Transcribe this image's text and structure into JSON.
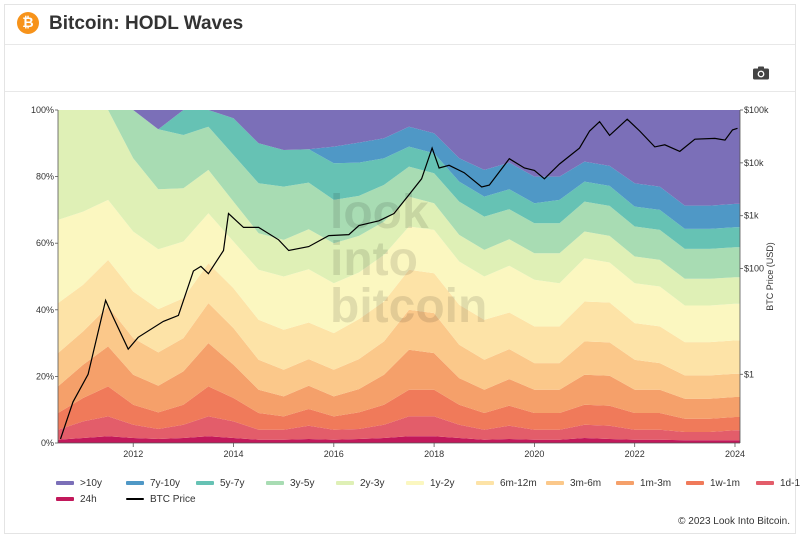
{
  "header": {
    "title": "Bitcoin: HODL Waves",
    "logo_icon": "bitcoin-icon",
    "logo_glyph": "₿"
  },
  "toolbar": {
    "camera_icon": "camera-icon"
  },
  "footer": {
    "copyright": "© 2023 Look Into Bitcoin."
  },
  "watermark": {
    "line1": "look",
    "line2": "into",
    "line3": "bitcoin"
  },
  "chart_data": {
    "type": "area",
    "stacked": true,
    "y_left": {
      "min": 0,
      "max": 100,
      "unit": "%",
      "ticks": [
        0,
        20,
        40,
        60,
        80,
        100
      ],
      "tick_labels": [
        "0%",
        "20%",
        "40%",
        "60%",
        "80%",
        "100%"
      ]
    },
    "y_right": {
      "label": "BTC Price (USD)",
      "scale": "log",
      "ticks": [
        1,
        100,
        1000,
        10000,
        100000
      ],
      "tick_labels": [
        "$1",
        "$100",
        "$1k",
        "$10k",
        "$100k"
      ]
    },
    "x_axis": {
      "min": 2010.5,
      "max": 2024.1,
      "ticks": [
        2012,
        2014,
        2016,
        2018,
        2020,
        2022,
        2024
      ],
      "tick_labels": [
        "2012",
        "2014",
        "2016",
        "2018",
        "2020",
        "2022",
        "2024"
      ]
    },
    "x": [
      2010.5,
      2011.0,
      2011.5,
      2012.0,
      2012.5,
      2013.0,
      2013.5,
      2014.0,
      2014.5,
      2015.0,
      2015.5,
      2016.0,
      2016.5,
      2017.0,
      2017.5,
      2018.0,
      2018.5,
      2019.0,
      2019.5,
      2020.0,
      2020.5,
      2021.0,
      2021.5,
      2022.0,
      2022.5,
      2023.0,
      2023.5,
      2024.0,
      2024.1
    ],
    "series": [
      {
        "name": "24h",
        "color": "#c2185b",
        "values": [
          1.0,
          1.5,
          2.0,
          1.5,
          1.2,
          1.5,
          2.0,
          1.5,
          1.0,
          1.0,
          1.2,
          1.0,
          1.2,
          1.5,
          2.0,
          2.0,
          1.5,
          1.0,
          1.2,
          1.0,
          1.0,
          1.5,
          1.2,
          1.0,
          1.0,
          0.8,
          0.8,
          0.8,
          0.8
        ]
      },
      {
        "name": "1d-1w",
        "color": "#e35d6a",
        "values": [
          3,
          5,
          6,
          4,
          3,
          4,
          6,
          5,
          3,
          3,
          4,
          3,
          3,
          4,
          6,
          6,
          4,
          3,
          4,
          3,
          3,
          4,
          4,
          3,
          3,
          2.5,
          2.5,
          3,
          3
        ]
      },
      {
        "name": "1w-1m",
        "color": "#f07a5a",
        "values": [
          5,
          7,
          9,
          6,
          5,
          6,
          9,
          7,
          5,
          4,
          5,
          4,
          5,
          6,
          8,
          8,
          6,
          5,
          6,
          5,
          5,
          6,
          6,
          5,
          5,
          4,
          4,
          4,
          4
        ]
      },
      {
        "name": "1m-3m",
        "color": "#f5a06a",
        "values": [
          8,
          10,
          12,
          9,
          8,
          10,
          13,
          10,
          7,
          6,
          7,
          6,
          7,
          9,
          12,
          11,
          8,
          7,
          8,
          7,
          7,
          9,
          9,
          7,
          7,
          6,
          6,
          6,
          6
        ]
      },
      {
        "name": "3m-6m",
        "color": "#fbc88a",
        "values": [
          10,
          10,
          12,
          11,
          10,
          10,
          12,
          11,
          9,
          8,
          8,
          8,
          9,
          10,
          12,
          12,
          10,
          9,
          9,
          8,
          8,
          10,
          10,
          9,
          8,
          7,
          7,
          7,
          7
        ]
      },
      {
        "name": "6m-12m",
        "color": "#fde3a7",
        "values": [
          15,
          14,
          14,
          14,
          13,
          12,
          12,
          12,
          12,
          12,
          11,
          11,
          12,
          12,
          12,
          12,
          12,
          12,
          11,
          11,
          11,
          12,
          12,
          11,
          11,
          10,
          10,
          10,
          10
        ]
      },
      {
        "name": "1y-2y",
        "color": "#fbf7c0",
        "values": [
          25,
          22,
          18,
          18,
          18,
          17,
          15,
          14,
          15,
          16,
          16,
          15,
          14,
          14,
          13,
          13,
          13,
          13,
          14,
          14,
          13,
          13,
          12,
          12,
          12,
          11,
          11,
          11,
          11
        ]
      },
      {
        "name": "2y-3y",
        "color": "#dff0b6",
        "values": [
          33,
          31,
          27,
          22,
          18,
          16,
          13,
          12,
          11,
          11,
          12,
          12,
          11,
          10,
          9,
          8,
          8,
          8,
          8,
          8,
          9,
          8,
          8,
          8,
          8,
          8,
          8,
          8,
          8
        ]
      },
      {
        "name": "3y-5y",
        "color": "#a8dcb3",
        "values": [
          0,
          0,
          0,
          15,
          18,
          16,
          13,
          14,
          15,
          16,
          14,
          13,
          12,
          11,
          9,
          9,
          10,
          10,
          9,
          9,
          9,
          9,
          9,
          9,
          9,
          9,
          9,
          9,
          9
        ]
      },
      {
        "name": "5y-7y",
        "color": "#66c2b4",
        "values": [
          0,
          0,
          0,
          0,
          0,
          8,
          10,
          11,
          12,
          11,
          10,
          11,
          10,
          8,
          6,
          6,
          6,
          6,
          6,
          6,
          7,
          6,
          6,
          6,
          6,
          6,
          6,
          6,
          6
        ]
      },
      {
        "name": "7y-10y",
        "color": "#4f98c6",
        "values": [
          0,
          0,
          0,
          0,
          0,
          0,
          0,
          0,
          0,
          0,
          0,
          5,
          6,
          6,
          6,
          6,
          7,
          8,
          8,
          8,
          7,
          6,
          6,
          7,
          7,
          7,
          7,
          7,
          7
        ]
      },
      {
        "name": "&gt;10y",
        "color": "#7b6fb8",
        "values": [
          0,
          0,
          0,
          0,
          0,
          0,
          0,
          0,
          0,
          0,
          0,
          0,
          0,
          0,
          0,
          0,
          0,
          0,
          0,
          0,
          0,
          0,
          0,
          0,
          0,
          0,
          0,
          0,
          0
        ]
      }
    ],
    "price": {
      "name": "BTC Price",
      "color": "#000000",
      "points": [
        [
          2010.55,
          0.06
        ],
        [
          2010.8,
          0.3
        ],
        [
          2011.1,
          1.0
        ],
        [
          2011.45,
          25
        ],
        [
          2011.6,
          12
        ],
        [
          2011.9,
          3
        ],
        [
          2012.1,
          5
        ],
        [
          2012.6,
          10
        ],
        [
          2012.9,
          13
        ],
        [
          2013.2,
          90
        ],
        [
          2013.35,
          110
        ],
        [
          2013.5,
          80
        ],
        [
          2013.8,
          220
        ],
        [
          2013.9,
          1100
        ],
        [
          2014.2,
          600
        ],
        [
          2014.5,
          600
        ],
        [
          2014.9,
          350
        ],
        [
          2015.1,
          220
        ],
        [
          2015.5,
          260
        ],
        [
          2015.9,
          420
        ],
        [
          2016.3,
          440
        ],
        [
          2016.5,
          650
        ],
        [
          2016.9,
          800
        ],
        [
          2017.2,
          1100
        ],
        [
          2017.5,
          2500
        ],
        [
          2017.75,
          5000
        ],
        [
          2017.96,
          19000
        ],
        [
          2018.1,
          8000
        ],
        [
          2018.3,
          9000
        ],
        [
          2018.6,
          6500
        ],
        [
          2018.95,
          3500
        ],
        [
          2019.1,
          3800
        ],
        [
          2019.5,
          12000
        ],
        [
          2019.8,
          8000
        ],
        [
          2020.0,
          7200
        ],
        [
          2020.2,
          5000
        ],
        [
          2020.5,
          9500
        ],
        [
          2020.9,
          19000
        ],
        [
          2021.1,
          40000
        ],
        [
          2021.3,
          60000
        ],
        [
          2021.5,
          33000
        ],
        [
          2021.85,
          67000
        ],
        [
          2022.1,
          40000
        ],
        [
          2022.4,
          20000
        ],
        [
          2022.6,
          22000
        ],
        [
          2022.9,
          16500
        ],
        [
          2023.2,
          28000
        ],
        [
          2023.6,
          29000
        ],
        [
          2023.8,
          27000
        ],
        [
          2023.95,
          42000
        ],
        [
          2024.05,
          45000
        ]
      ]
    },
    "legend": {
      "placement": "bottom",
      "entries": [
        "&gt;10y",
        "7y-10y",
        "5y-7y",
        "3y-5y",
        "2y-3y",
        "1y-2y",
        "6m-12m",
        "3m-6m",
        "1m-3m",
        "1w-1m",
        "1d-1w",
        "24h",
        "BTC Price"
      ]
    }
  }
}
